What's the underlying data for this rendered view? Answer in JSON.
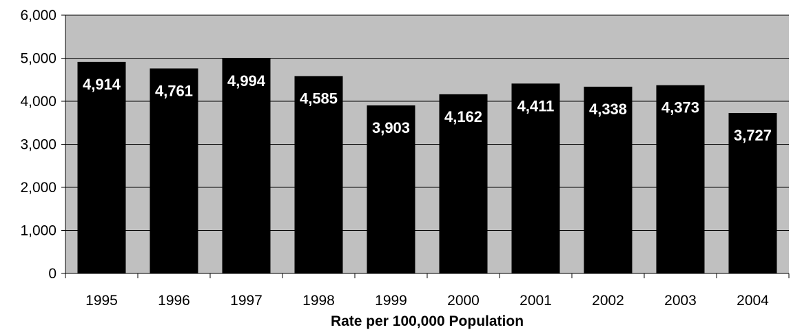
{
  "chart_data": {
    "type": "bar",
    "categories": [
      "1995",
      "1996",
      "1997",
      "1998",
      "1999",
      "2000",
      "2001",
      "2002",
      "2003",
      "2004"
    ],
    "values": [
      4914,
      4761,
      4994,
      4585,
      3903,
      4162,
      4411,
      4338,
      4373,
      3727
    ],
    "value_labels": [
      "4,914",
      "4,761",
      "4,994",
      "4,585",
      "3,903",
      "4,162",
      "4,411",
      "4,338",
      "4,373",
      "3,727"
    ],
    "title": "",
    "xlabel": "Rate per 100,000 Population",
    "ylabel": "",
    "ylim": [
      0,
      6000
    ],
    "yticks": [
      0,
      1000,
      2000,
      3000,
      4000,
      5000,
      6000
    ],
    "ytick_labels": [
      "0",
      "1,000",
      "2,000",
      "3,000",
      "4,000",
      "5,000",
      "6,000"
    ],
    "grid": true,
    "legend": "none",
    "colors": {
      "plot_background": "#c0c0c0",
      "bar": "#000000",
      "gridline": "#000000",
      "data_label": "#ffffff"
    }
  }
}
